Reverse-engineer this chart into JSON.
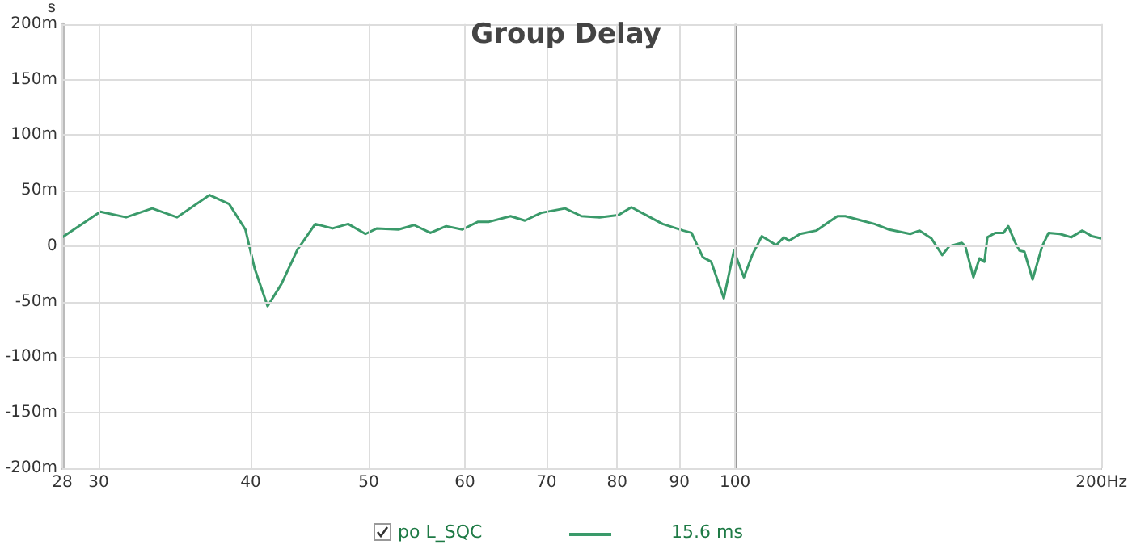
{
  "chart_data": {
    "type": "line",
    "title": "Group Delay",
    "ylabel": "s",
    "series": [
      {
        "name": "po L_SQC",
        "color": "#3a9a6a",
        "x": [
          28,
          30.1,
          31.6,
          33.2,
          34.8,
          37.0,
          38.4,
          39.6,
          40.3,
          41.3,
          42.4,
          43.7,
          45.2,
          46.7,
          48.1,
          49.7,
          50.8,
          52.9,
          54.5,
          56.2,
          57.9,
          59.7,
          61.5,
          62.8,
          65.4,
          67.2,
          69.3,
          72.5,
          74.8,
          77.4,
          80.2,
          82.2,
          84.5,
          87.2,
          90.7,
          92.1,
          94.1,
          95.6,
          97.9,
          99.8,
          101.7,
          103.3,
          105.2,
          108.1,
          109.7,
          110.8,
          113.1,
          116.6,
          121.4,
          123.2,
          127.1,
          130.2,
          133.8,
          139.3,
          141.8,
          145,
          148,
          150,
          153.6,
          154.6,
          157,
          158.8,
          160.3,
          161.2,
          163.7,
          166.2,
          167.7,
          169.8,
          171.3,
          172.9,
          175.6,
          178.8,
          181,
          184.9,
          188.9,
          192.9,
          196.4,
          200
        ],
        "values": [
          8,
          31,
          26,
          34,
          26,
          46,
          38,
          15,
          -20,
          -54,
          -34,
          -3,
          20,
          16,
          20,
          11,
          16,
          15,
          19,
          12,
          18,
          15,
          22,
          22,
          27,
          23,
          30,
          34,
          27,
          26,
          28,
          35,
          28,
          20,
          14,
          12,
          -10,
          -14,
          -47,
          -4,
          -28,
          -8,
          9,
          1,
          8,
          5,
          11,
          14,
          27,
          27,
          23,
          20,
          15,
          11,
          14,
          7,
          -8,
          0,
          3,
          0,
          -28,
          -11,
          -14,
          8,
          12,
          12,
          18,
          4,
          -4,
          -5,
          -30,
          0,
          12,
          11,
          8,
          14,
          9,
          7
        ]
      }
    ],
    "log": "x",
    "xlim": [
      28,
      200
    ],
    "xticks": [
      28,
      30,
      40,
      50,
      60,
      70,
      80,
      90,
      100,
      {
        "value": 200,
        "label": "200Hz"
      }
    ],
    "ylim": [
      -200,
      200
    ],
    "yticks": [
      {
        "value": -200,
        "label": "-200m"
      },
      {
        "value": -150,
        "label": "-150m"
      },
      {
        "value": -100,
        "label": "-100m"
      },
      {
        "value": -50,
        "label": "-50m"
      },
      0,
      {
        "value": 50,
        "label": "50m"
      },
      {
        "value": 100,
        "label": "100m"
      },
      {
        "value": 150,
        "label": "150m"
      },
      {
        "value": 200,
        "label": "200m"
      }
    ],
    "grid": true,
    "legend": "bottom",
    "marker": "none",
    "line_style": "solid",
    "ref_lines": [
      {
        "axis": "x",
        "value": 100,
        "color": "#999999"
      }
    ],
    "annotations": [
      "15.6 ms"
    ]
  }
}
